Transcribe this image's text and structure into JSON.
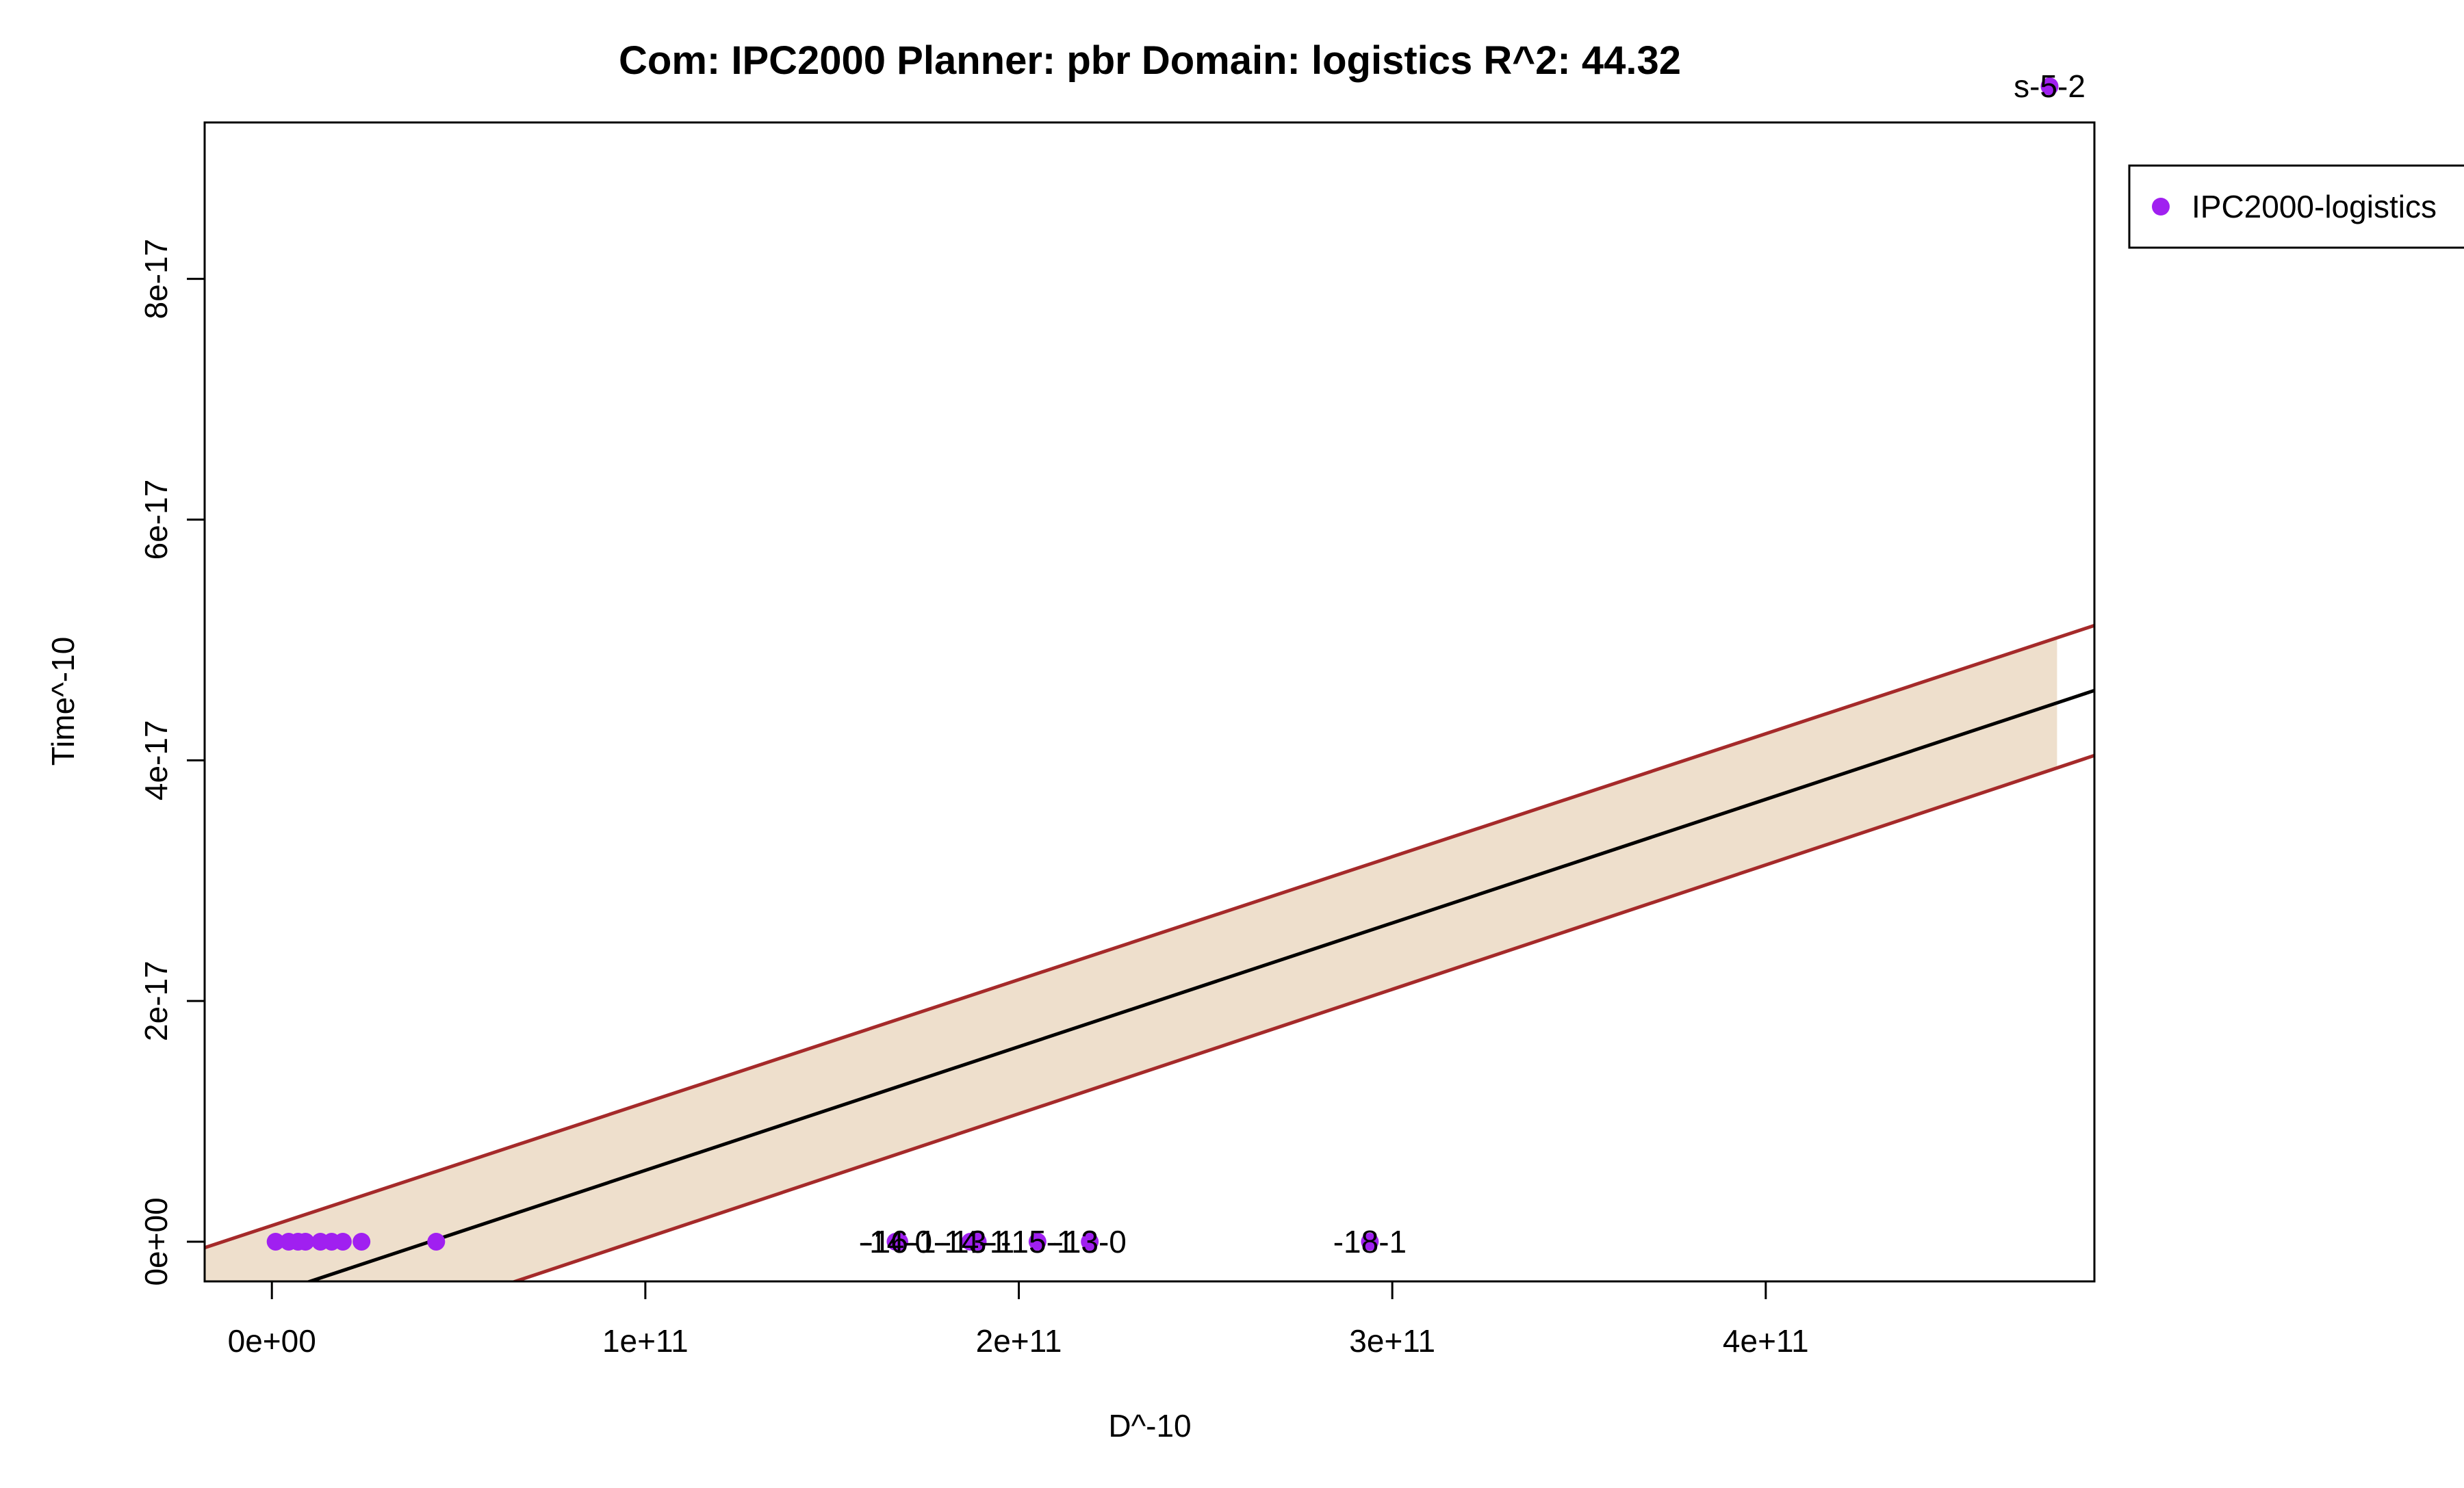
{
  "chart_data": {
    "type": "scatter",
    "title": "Com: IPC2000 Planner: pbr Domain: logistics R^2: 44.32",
    "xlabel": "D^-10",
    "ylabel": "Time^-10",
    "xlim": [
      -18000000000.0,
      488000000000.0
    ],
    "ylim": [
      -3.3e-18,
      9.3e-17
    ],
    "x_ticks": [
      {
        "value": 0,
        "label": "0e+00"
      },
      {
        "value": 100000000000.0,
        "label": "1e+11"
      },
      {
        "value": 200000000000.0,
        "label": "2e+11"
      },
      {
        "value": 300000000000.0,
        "label": "3e+11"
      },
      {
        "value": 400000000000.0,
        "label": "4e+11"
      }
    ],
    "y_ticks": [
      {
        "value": 0,
        "label": "0e+00"
      },
      {
        "value": 2e-17,
        "label": "2e-17"
      },
      {
        "value": 4e-17,
        "label": "4e-17"
      },
      {
        "value": 6e-17,
        "label": "6e-17"
      },
      {
        "value": 8e-17,
        "label": "8e-17"
      }
    ],
    "grid": false,
    "legend": {
      "position": "outside-top-right",
      "entries": [
        "IPC2000-logistics"
      ]
    },
    "series": [
      {
        "name": "IPC2000-logistics",
        "color": "#a020f0",
        "points": [
          {
            "x": 1000000000.0,
            "y": 0
          },
          {
            "x": 4500000000.0,
            "y": 0
          },
          {
            "x": 7000000000.0,
            "y": 0
          },
          {
            "x": 9000000000.0,
            "y": 0
          },
          {
            "x": 13000000000.0,
            "y": 0
          },
          {
            "x": 16000000000.0,
            "y": 0
          },
          {
            "x": 19000000000.0,
            "y": 0
          },
          {
            "x": 24000000000.0,
            "y": 0
          },
          {
            "x": 44000000000.0,
            "y": 0
          },
          {
            "x": 167000000000.0,
            "y": 0,
            "label": "-14-0"
          },
          {
            "x": 168000000000.0,
            "y": 0,
            "label": "-16-1"
          },
          {
            "x": 187000000000.0,
            "y": 0,
            "label": "-14-1"
          },
          {
            "x": 189000000000.0,
            "y": 0,
            "label": "-13-1"
          },
          {
            "x": 205000000000.0,
            "y": 0,
            "label": "-15-1"
          },
          {
            "x": 219000000000.0,
            "y": 0,
            "label": "-13-0"
          },
          {
            "x": 294000000000.0,
            "y": 0,
            "label": "-18-1"
          },
          {
            "x": 476000000000.0,
            "y": 9.6e-17,
            "label": "s-5-2"
          }
        ]
      }
    ],
    "fit": {
      "color": "#000000",
      "band_color": "#a52a2a",
      "band_fill": "#eedfcc",
      "line": [
        {
          "x": -18000000000.0,
          "y": -6.2e-18
        },
        {
          "x": 488000000000.0,
          "y": 4.58e-17
        }
      ],
      "upper": [
        {
          "x": -18000000000.0,
          "y": -5e-19
        },
        {
          "x": 488000000000.0,
          "y": 5.12e-17
        }
      ],
      "lower": [
        {
          "x": -18000000000.0,
          "y": -1.19e-17
        },
        {
          "x": 488000000000.0,
          "y": 4.04e-17
        }
      ],
      "band_x_max": 478000000000.0
    }
  }
}
